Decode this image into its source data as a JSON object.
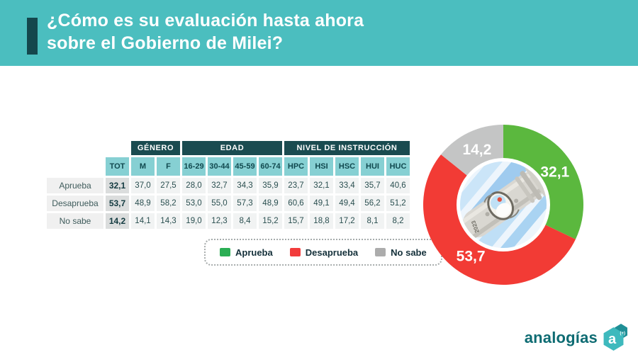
{
  "header": {
    "title_line1": "¿Cómo es su evaluación hasta ahora",
    "title_line2": "sobre el Gobierno de Milei?"
  },
  "chart_data": [
    {
      "type": "table",
      "title": "Evaluación del Gobierno de Milei por segmento",
      "group_headers": [
        {
          "label": "GÉNERO",
          "span": 2
        },
        {
          "label": "EDAD",
          "span": 4
        },
        {
          "label": "NIVEL DE INSTRUCCIÓN",
          "span": 5
        }
      ],
      "columns": [
        "TOT",
        "M",
        "F",
        "16-29",
        "30-44",
        "45-59",
        "60-74",
        "HPC",
        "HSI",
        "HSC",
        "HUI",
        "HUC"
      ],
      "rows": [
        {
          "label": "Aprueba",
          "values": [
            "32,1",
            "37,0",
            "27,5",
            "28,0",
            "32,7",
            "34,3",
            "35,9",
            "23,7",
            "32,1",
            "33,4",
            "35,7",
            "40,6"
          ]
        },
        {
          "label": "Desaprueba",
          "values": [
            "53,7",
            "48,9",
            "58,2",
            "53,0",
            "55,0",
            "57,3",
            "48,9",
            "60,6",
            "49,1",
            "49,4",
            "56,2",
            "51,2"
          ]
        },
        {
          "label": "No sabe",
          "values": [
            "14,2",
            "14,1",
            "14,3",
            "19,0",
            "12,3",
            "8,4",
            "15,2",
            "15,7",
            "18,8",
            "17,2",
            "8,1",
            "8,2"
          ]
        }
      ]
    },
    {
      "type": "pie",
      "donut": true,
      "title": "¿Cómo es su evaluación hasta ahora sobre el Gobierno de Milei?",
      "categories": [
        "Aprueba",
        "Desaprueba",
        "No sabe"
      ],
      "values": [
        32.1,
        53.7,
        14.2
      ],
      "labels": [
        "32,1",
        "53,7",
        "14,2"
      ],
      "colors": [
        "#5BB83E",
        "#F23B35",
        "#C4C5C5"
      ],
      "start_angle": "12-oclock",
      "direction": "clockwise"
    }
  ],
  "legend": {
    "items": [
      {
        "label": "Aprueba",
        "color": "#2BAE54"
      },
      {
        "label": "Desaprueba",
        "color": "#F23C3C"
      },
      {
        "label": "No sabe",
        "color": "#ACACAC"
      }
    ]
  },
  "logo": {
    "text": "analogías",
    "mark_letter": "a",
    "mark_sup": "(+)"
  },
  "colors": {
    "header_bg": "#4BBEBF",
    "header_accent": "#14474D",
    "group_header_bg": "#1A4B50",
    "subheader_bg": "#86D0D3",
    "label_cell_bg": "#F0F0F0",
    "tot_cell_bg": "#DBDDDD",
    "value_cell_bg": "#F1F3F3"
  }
}
